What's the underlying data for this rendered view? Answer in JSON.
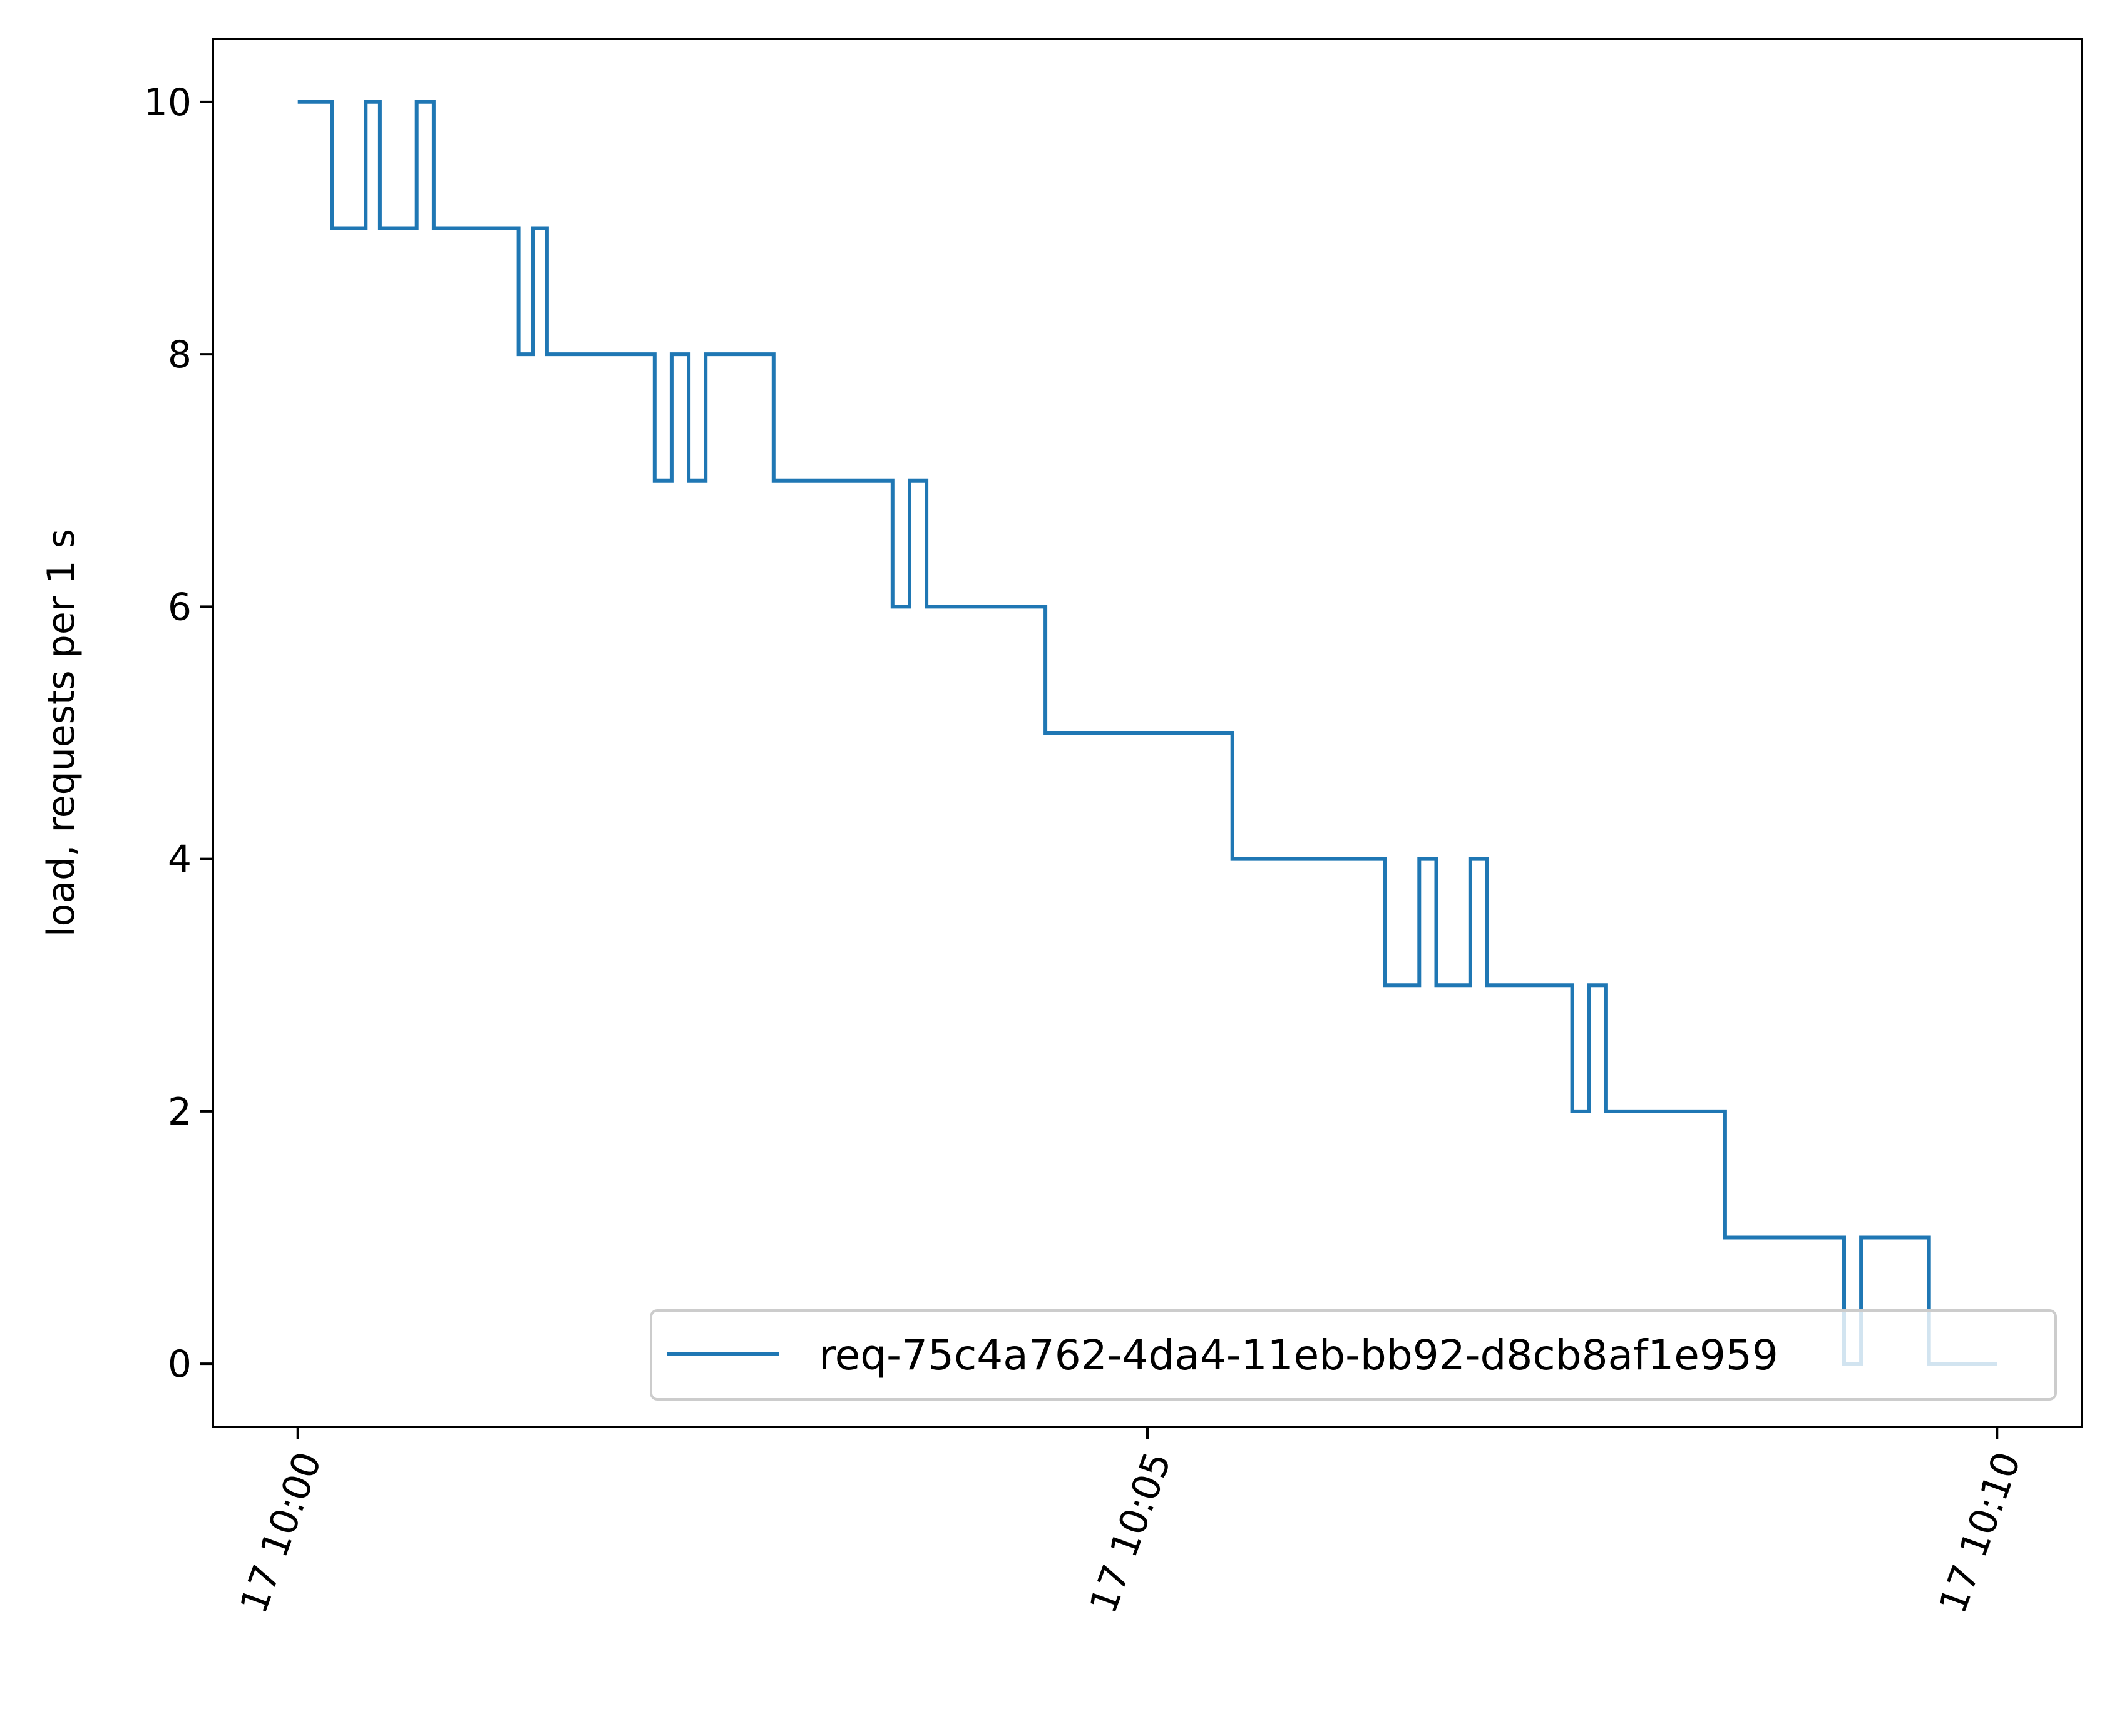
{
  "chart_data": {
    "type": "line",
    "step": true,
    "ylabel": "load, requests per 1 s",
    "xlabel": "",
    "title": "",
    "xlim": [
      "17 09:59:30",
      "17 10:10:30"
    ],
    "ylim": [
      -0.5,
      10.5
    ],
    "xticks": [
      {
        "t": "17 10:00:00",
        "label": "17 10:00"
      },
      {
        "t": "17 10:05:00",
        "label": "17 10:05"
      },
      {
        "t": "17 10:10:00",
        "label": "17 10:10"
      }
    ],
    "yticks": [
      0,
      2,
      4,
      6,
      8,
      10
    ],
    "grid": false,
    "legend": {
      "placement": "lower-right"
    },
    "series": [
      {
        "name": "req-75c4a762-4da4-11eb-bb92-d8cb8af1e959",
        "color": "#1f77b4",
        "points": [
          [
            "17 10:00:00",
            10
          ],
          [
            "17 10:00:12",
            10
          ],
          [
            "17 10:00:12",
            9
          ],
          [
            "17 10:00:24",
            9
          ],
          [
            "17 10:00:24",
            10
          ],
          [
            "17 10:00:29",
            10
          ],
          [
            "17 10:00:29",
            9
          ],
          [
            "17 10:00:42",
            9
          ],
          [
            "17 10:00:42",
            10
          ],
          [
            "17 10:00:48",
            10
          ],
          [
            "17 10:00:48",
            9
          ],
          [
            "17 10:01:18",
            9
          ],
          [
            "17 10:01:18",
            8
          ],
          [
            "17 10:01:23",
            8
          ],
          [
            "17 10:01:23",
            9
          ],
          [
            "17 10:01:28",
            9
          ],
          [
            "17 10:01:28",
            8
          ],
          [
            "17 10:02:06",
            8
          ],
          [
            "17 10:02:06",
            7
          ],
          [
            "17 10:02:12",
            7
          ],
          [
            "17 10:02:12",
            8
          ],
          [
            "17 10:02:18",
            8
          ],
          [
            "17 10:02:18",
            7
          ],
          [
            "17 10:02:24",
            7
          ],
          [
            "17 10:02:24",
            8
          ],
          [
            "17 10:02:48",
            8
          ],
          [
            "17 10:02:48",
            7
          ],
          [
            "17 10:03:30",
            7
          ],
          [
            "17 10:03:30",
            6
          ],
          [
            "17 10:03:36",
            6
          ],
          [
            "17 10:03:36",
            7
          ],
          [
            "17 10:03:42",
            7
          ],
          [
            "17 10:03:42",
            6
          ],
          [
            "17 10:04:24",
            6
          ],
          [
            "17 10:04:24",
            5
          ],
          [
            "17 10:05:30",
            5
          ],
          [
            "17 10:05:30",
            4
          ],
          [
            "17 10:06:24",
            4
          ],
          [
            "17 10:06:24",
            3
          ],
          [
            "17 10:06:36",
            3
          ],
          [
            "17 10:06:36",
            4
          ],
          [
            "17 10:06:42",
            4
          ],
          [
            "17 10:06:42",
            3
          ],
          [
            "17 10:06:54",
            3
          ],
          [
            "17 10:06:54",
            4
          ],
          [
            "17 10:07:00",
            4
          ],
          [
            "17 10:07:00",
            3
          ],
          [
            "17 10:07:30",
            3
          ],
          [
            "17 10:07:30",
            2
          ],
          [
            "17 10:07:36",
            2
          ],
          [
            "17 10:07:36",
            3
          ],
          [
            "17 10:07:42",
            3
          ],
          [
            "17 10:07:42",
            2
          ],
          [
            "17 10:08:24",
            2
          ],
          [
            "17 10:08:24",
            1
          ],
          [
            "17 10:09:06",
            1
          ],
          [
            "17 10:09:06",
            0
          ],
          [
            "17 10:09:12",
            0
          ],
          [
            "17 10:09:12",
            1
          ],
          [
            "17 10:09:36",
            1
          ],
          [
            "17 10:09:36",
            0
          ],
          [
            "17 10:10:00",
            0
          ]
        ]
      }
    ]
  }
}
